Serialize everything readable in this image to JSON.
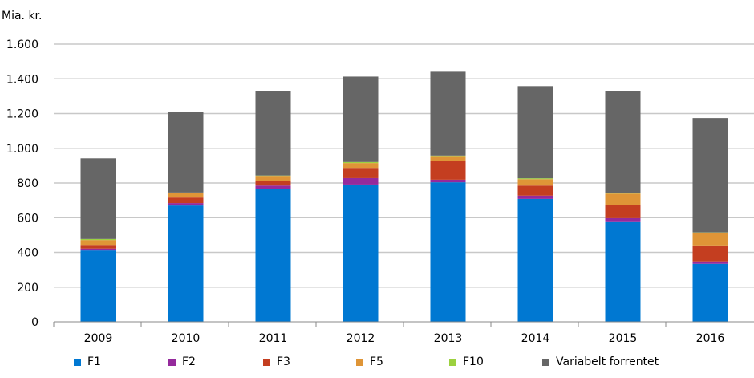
{
  "chart_data": {
    "type": "bar",
    "stacked": true,
    "ylabel": "Mia. kr.",
    "ylim": [
      0,
      1600
    ],
    "yticks": [
      0,
      200,
      400,
      600,
      800,
      1000,
      1200,
      1400,
      1600
    ],
    "ytick_labels": [
      "0",
      "200",
      "400",
      "600",
      "800",
      "1.000",
      "1.200",
      "1.400",
      "1.600"
    ],
    "grid": true,
    "legend_position": "bottom",
    "categories": [
      "2009",
      "2010",
      "2011",
      "2012",
      "2013",
      "2014",
      "2015",
      "2016"
    ],
    "series": [
      {
        "name": "F1",
        "color": "#0078d2",
        "values": [
          411,
          670,
          764,
          791,
          804,
          708,
          579,
          334
        ]
      },
      {
        "name": "F2",
        "color": "#952a9c",
        "values": [
          11,
          14,
          21,
          37,
          15,
          19,
          18,
          14
        ]
      },
      {
        "name": "F3",
        "color": "#c43e20",
        "values": [
          21,
          32,
          28,
          59,
          109,
          58,
          77,
          92
        ]
      },
      {
        "name": "F5",
        "color": "#df9537",
        "values": [
          28,
          24,
          28,
          28,
          23,
          37,
          65,
          74
        ]
      },
      {
        "name": "F10",
        "color": "#9cd13f",
        "values": [
          6,
          5,
          2,
          6,
          7,
          5,
          4,
          1
        ]
      },
      {
        "name": "Variabelt forrentet",
        "color": "#666666",
        "values": [
          465,
          465,
          487,
          492,
          483,
          531,
          587,
          659
        ]
      }
    ]
  }
}
